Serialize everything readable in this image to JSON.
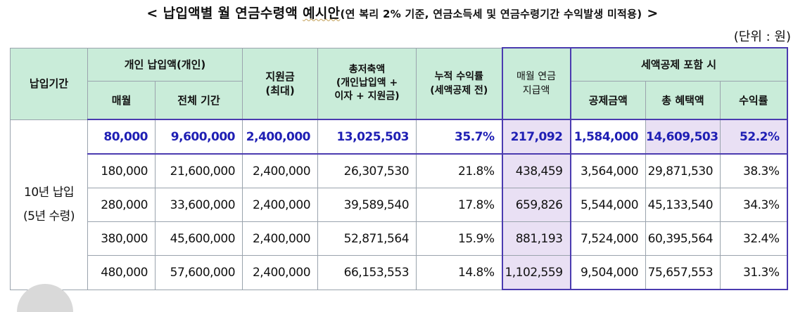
{
  "title": {
    "prefix": "< ",
    "main": "납입액별 월 연금수령액 ",
    "highlight": "예시안",
    "note": "(연 복리 2% 기준, 연금소득세 및 연금수령기간 수익발생 미적용)",
    "suffix": " >"
  },
  "unit": "(단위 : 원)",
  "table": {
    "headers": {
      "period": "납입기간",
      "personal": "개인 납입액(개인)",
      "monthly": "매월",
      "total_period": "전체 기간",
      "subsidy": "지원금\n(최대)",
      "total_savings": "총저축액\n(개인납입액 +\n이자 + 지원금)",
      "cum_return": "누적 수익률\n(세액공제 전)",
      "monthly_pension": "매월 연금\n지급액",
      "tax_credit_group": "세액공제 포함 시",
      "deduction": "공제금액",
      "total_benefit": "총 혜택액",
      "return_rate": "수익률"
    },
    "period_label": "10년 납입\n(5년 수령)",
    "rows": [
      {
        "monthly": "80,000",
        "total": "9,600,000",
        "subsidy": "2,400,000",
        "savings": "13,025,503",
        "cum": "35.7%",
        "pension": "217,092",
        "deduction": "1,584,000",
        "benefit": "14,609,503",
        "rate": "52.2%"
      },
      {
        "monthly": "180,000",
        "total": "21,600,000",
        "subsidy": "2,400,000",
        "savings": "26,307,530",
        "cum": "21.8%",
        "pension": "438,459",
        "deduction": "3,564,000",
        "benefit": "29,871,530",
        "rate": "38.3%"
      },
      {
        "monthly": "280,000",
        "total": "33,600,000",
        "subsidy": "2,400,000",
        "savings": "39,589,540",
        "cum": "17.8%",
        "pension": "659,826",
        "deduction": "5,544,000",
        "benefit": "45,133,540",
        "rate": "34.3%"
      },
      {
        "monthly": "380,000",
        "total": "45,600,000",
        "subsidy": "2,400,000",
        "savings": "52,871,564",
        "cum": "15.9%",
        "pension": "881,193",
        "deduction": "7,524,000",
        "benefit": "60,395,564",
        "rate": "32.4%"
      },
      {
        "monthly": "480,000",
        "total": "57,600,000",
        "subsidy": "2,400,000",
        "savings": "66,153,553",
        "cum": "14.8%",
        "pension": "1,102,559",
        "deduction": "9,504,000",
        "benefit": "75,657,553",
        "rate": "31.3%"
      }
    ]
  },
  "colors": {
    "header_bg": "#c9ecd9",
    "highlight_text": "#1f1fb4",
    "pension_bg": "#e9e0f4",
    "outline": "#4b3bb0"
  }
}
